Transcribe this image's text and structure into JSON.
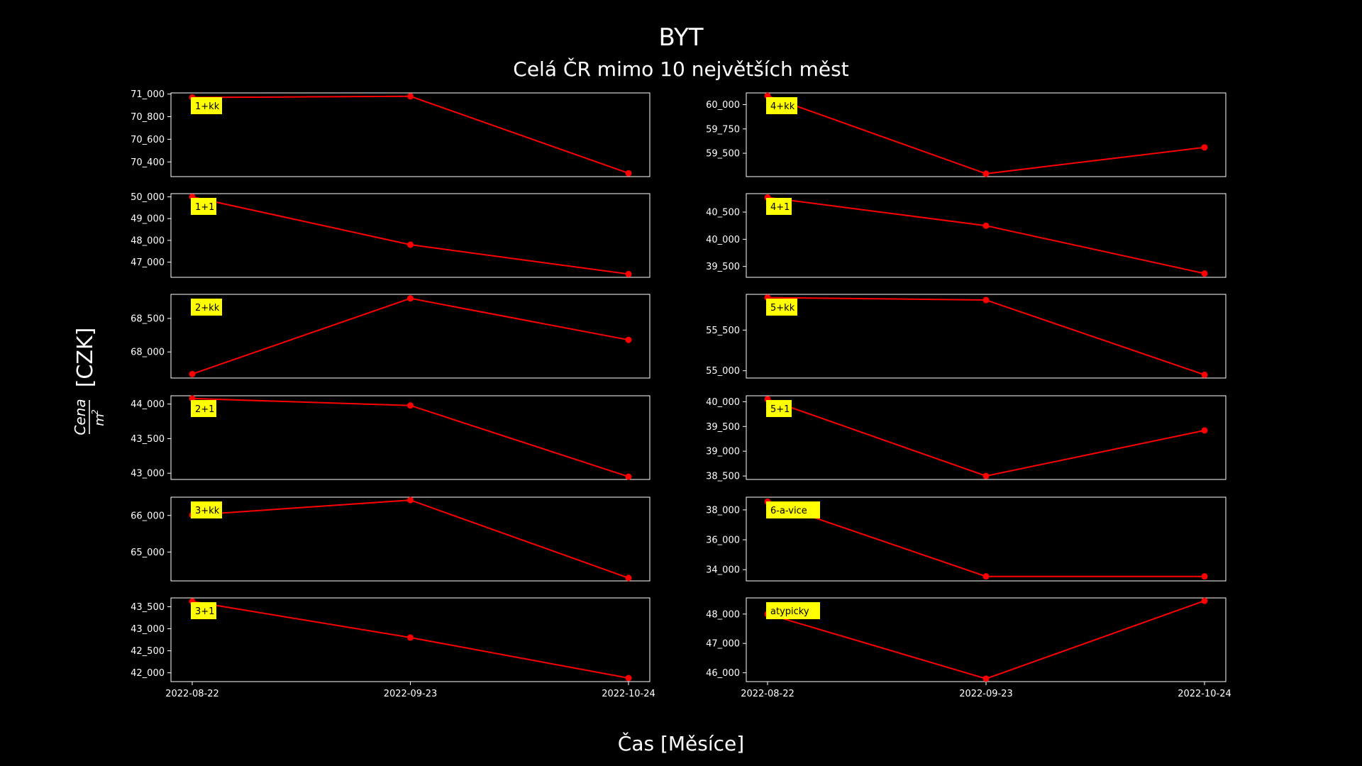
{
  "figure": {
    "title": "BYT",
    "subtitle": "Celá ČR mimo 10 největších měst",
    "xlabel": "Čas [Měsíce]",
    "ylabel_num": "Cena",
    "ylabel_den": "m",
    "ylabel_exp": "2",
    "ylabel_unit": "[CZK]",
    "line_color": "#ff0000",
    "label_bg": "#ffff00"
  },
  "chart_data": [
    {
      "type": "line",
      "label": "1+kk",
      "x": [
        "2022-08-22",
        "2022-09-23",
        "2022-10-24"
      ],
      "values": [
        70970,
        70980,
        70300
      ],
      "ylim": [
        70270,
        71010
      ],
      "yticks": [
        70400,
        70600,
        70800,
        71000
      ],
      "ytick_labels": [
        "70_400",
        "70_600",
        "70_800",
        "71_000"
      ],
      "xtick_labels": []
    },
    {
      "type": "line",
      "label": "4+kk",
      "x": [
        "2022-08-22",
        "2022-09-23",
        "2022-10-24"
      ],
      "values": [
        60090,
        59290,
        59560
      ],
      "ylim": [
        59260,
        60120
      ],
      "yticks": [
        59500,
        59750,
        60000
      ],
      "ytick_labels": [
        "59_500",
        "59_750",
        "60_000"
      ],
      "xtick_labels": []
    },
    {
      "type": "line",
      "label": "1+1",
      "x": [
        "2022-08-22",
        "2022-09-23",
        "2022-10-24"
      ],
      "values": [
        50000,
        47800,
        46450
      ],
      "ylim": [
        46300,
        50150
      ],
      "yticks": [
        47000,
        48000,
        49000,
        50000
      ],
      "ytick_labels": [
        "47_000",
        "48_000",
        "49_000",
        "50_000"
      ],
      "xtick_labels": []
    },
    {
      "type": "line",
      "label": "4+1",
      "x": [
        "2022-08-22",
        "2022-09-23",
        "2022-10-24"
      ],
      "values": [
        40770,
        40250,
        39370
      ],
      "ylim": [
        39300,
        40840
      ],
      "yticks": [
        39500,
        40000,
        40500
      ],
      "ytick_labels": [
        "39_500",
        "40_000",
        "40_500"
      ],
      "xtick_labels": []
    },
    {
      "type": "line",
      "label": "2+kk",
      "x": [
        "2022-08-22",
        "2022-09-23",
        "2022-10-24"
      ],
      "values": [
        67670,
        68800,
        68180
      ],
      "ylim": [
        67610,
        68860
      ],
      "yticks": [
        68000,
        68500
      ],
      "ytick_labels": [
        "68_000",
        "68_500"
      ],
      "xtick_labels": []
    },
    {
      "type": "line",
      "label": "5+kk",
      "x": [
        "2022-08-22",
        "2022-09-23",
        "2022-10-24"
      ],
      "values": [
        55900,
        55870,
        54950
      ],
      "ylim": [
        54910,
        55940
      ],
      "yticks": [
        55000,
        55500
      ],
      "ytick_labels": [
        "55_000",
        "55_500"
      ],
      "xtick_labels": []
    },
    {
      "type": "line",
      "label": "2+1",
      "x": [
        "2022-08-22",
        "2022-09-23",
        "2022-10-24"
      ],
      "values": [
        44080,
        43980,
        42950
      ],
      "ylim": [
        42910,
        44120
      ],
      "yticks": [
        43000,
        43500,
        44000
      ],
      "ytick_labels": [
        "43_000",
        "43_500",
        "44_000"
      ],
      "xtick_labels": []
    },
    {
      "type": "line",
      "label": "5+1",
      "x": [
        "2022-08-22",
        "2022-09-23",
        "2022-10-24"
      ],
      "values": [
        40050,
        38500,
        39420
      ],
      "ylim": [
        38430,
        40120
      ],
      "yticks": [
        38500,
        39000,
        39500,
        40000
      ],
      "ytick_labels": [
        "38_500",
        "39_000",
        "39_500",
        "40_000"
      ],
      "xtick_labels": []
    },
    {
      "type": "line",
      "label": "3+kk",
      "x": [
        "2022-08-22",
        "2022-09-23",
        "2022-10-24"
      ],
      "values": [
        66010,
        66420,
        64290
      ],
      "ylim": [
        64210,
        66500
      ],
      "yticks": [
        65000,
        66000
      ],
      "ytick_labels": [
        "65_000",
        "66_000"
      ],
      "xtick_labels": []
    },
    {
      "type": "line",
      "label": "6-a-vice",
      "x": [
        "2022-08-22",
        "2022-09-23",
        "2022-10-24"
      ],
      "values": [
        38550,
        33550,
        33550
      ],
      "ylim": [
        33250,
        38850
      ],
      "yticks": [
        34000,
        36000,
        38000
      ],
      "ytick_labels": [
        "34_000",
        "36_000",
        "38_000"
      ],
      "xtick_labels": []
    },
    {
      "type": "line",
      "label": "3+1",
      "x": [
        "2022-08-22",
        "2022-09-23",
        "2022-10-24"
      ],
      "values": [
        43620,
        42800,
        41880
      ],
      "ylim": [
        41800,
        43700
      ],
      "yticks": [
        42000,
        42500,
        43000,
        43500
      ],
      "ytick_labels": [
        "42_000",
        "42_500",
        "43_000",
        "43_500"
      ],
      "xtick_labels": [
        "2022-08-22",
        "2022-09-23",
        "2022-10-24"
      ]
    },
    {
      "type": "line",
      "label": "atypicky",
      "x": [
        "2022-08-22",
        "2022-09-23",
        "2022-10-24"
      ],
      "values": [
        48000,
        45800,
        48450
      ],
      "ylim": [
        45700,
        48550
      ],
      "yticks": [
        46000,
        47000,
        48000
      ],
      "ytick_labels": [
        "46_000",
        "47_000",
        "48_000"
      ],
      "xtick_labels": [
        "2022-08-22",
        "2022-09-23",
        "2022-10-24"
      ]
    }
  ]
}
